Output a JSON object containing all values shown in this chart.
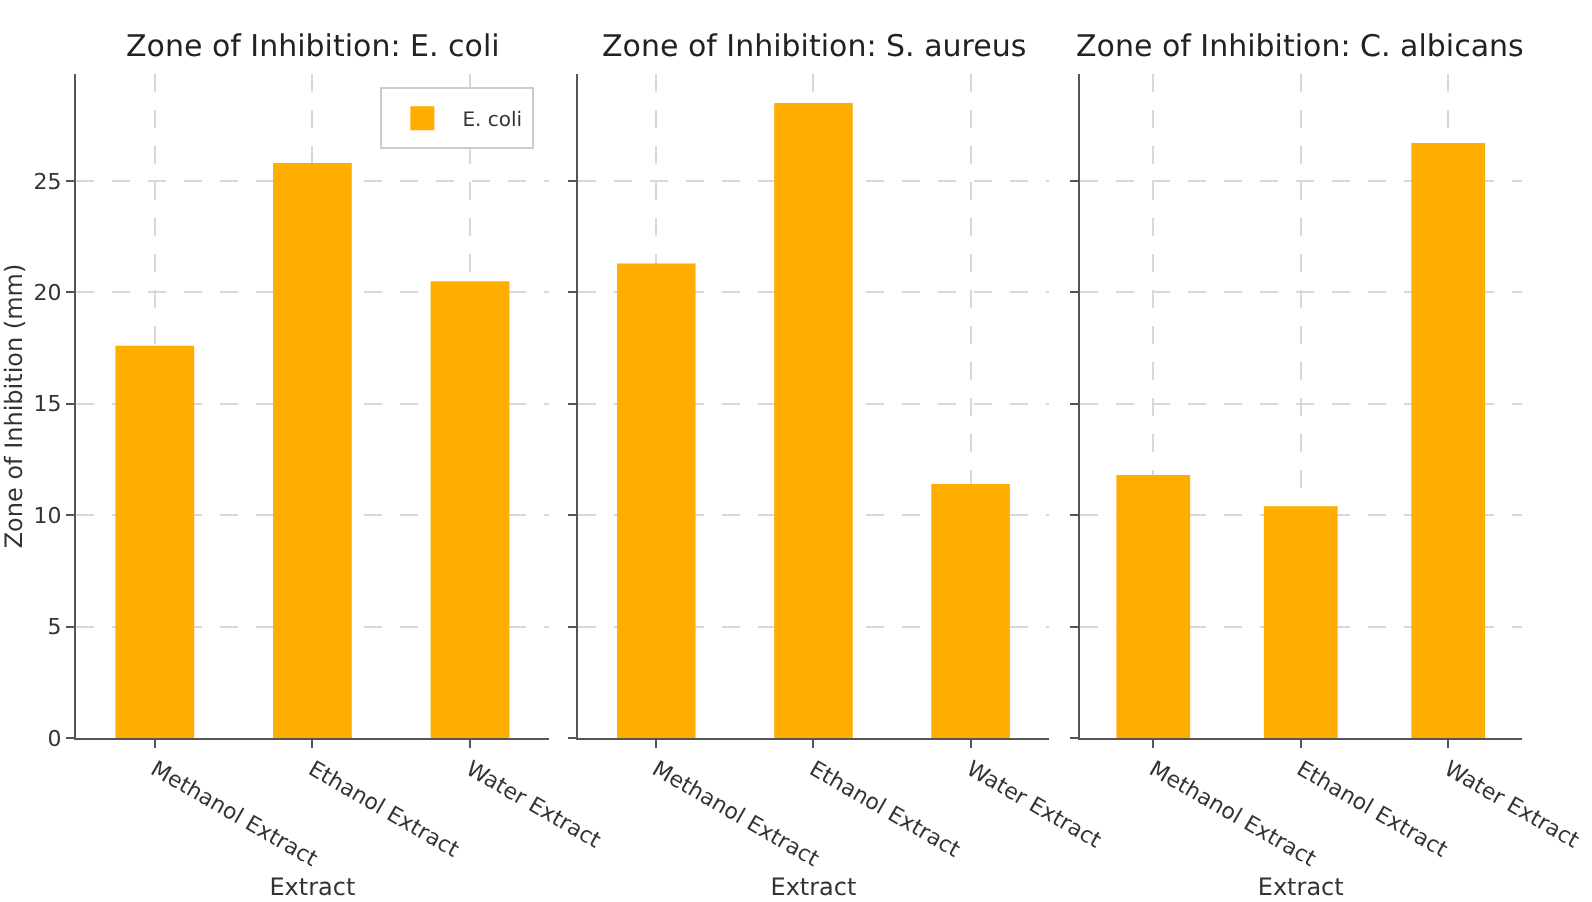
{
  "chart_data": [
    {
      "type": "bar",
      "title": "Zone of Inhibition: E. coli",
      "xlabel": "Extract",
      "ylabel": "Zone of Inhibition (mm)",
      "categories": [
        "Methanol Extract",
        "Ethanol Extract",
        "Water Extract"
      ],
      "series": [
        {
          "name": "E. coli",
          "color": "#ffad00",
          "values": [
            17.6,
            25.8,
            20.5
          ]
        }
      ],
      "ylim": [
        0,
        29.8
      ],
      "yticks": [
        0,
        5,
        10,
        15,
        20,
        25
      ],
      "grid": true,
      "legend": "top right"
    },
    {
      "type": "bar",
      "title": "Zone of Inhibition: S. aureus",
      "xlabel": "Extract",
      "categories": [
        "Methanol Extract",
        "Ethanol Extract",
        "Water Extract"
      ],
      "series": [
        {
          "color": "#ffad00",
          "values": [
            21.3,
            28.5,
            11.4
          ]
        }
      ],
      "ylim": [
        0,
        29.8
      ],
      "yticks": [
        0,
        5,
        10,
        15,
        20,
        25
      ],
      "grid": true,
      "tick_labels": "x"
    },
    {
      "type": "bar",
      "title": "Zone of Inhibition: C. albicans",
      "xlabel": "Extract",
      "categories": [
        "Methanol Extract",
        "Ethanol Extract",
        "Water Extract"
      ],
      "series": [
        {
          "color": "#ffad00",
          "values": [
            11.8,
            10.4,
            26.7
          ]
        }
      ],
      "ylim": [
        0,
        29.8
      ],
      "yticks": [
        0,
        5,
        10,
        15,
        20,
        25
      ],
      "grid": true,
      "tick_labels": "x"
    }
  ]
}
